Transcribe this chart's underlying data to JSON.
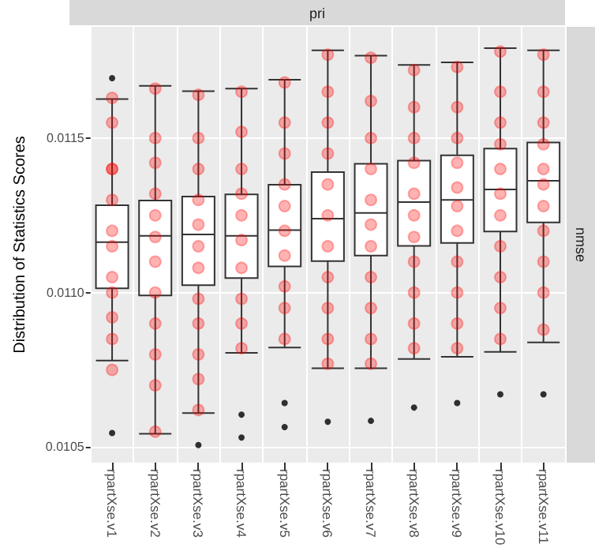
{
  "chart_data": {
    "type": "box",
    "ylabel": "Distribution of Statistics Scores",
    "annotations": [
      "pri",
      "nmse"
    ],
    "categories": [
      "rpartXse.v1",
      "rpartXse.v2",
      "rpartXse.v3",
      "rpartXse.v4",
      "rpartXse.v5",
      "rpartXse.v6",
      "rpartXse.v7",
      "rpartXse.v8",
      "rpartXse.v9",
      "rpartXse.v10",
      "rpartXse.v11"
    ],
    "ylim": [
      0.01045,
      0.01186
    ],
    "yticks": [
      0.0105,
      {
        "value": 0.011,
        "label": "0.0110"
      },
      0.0115
    ],
    "grid": true,
    "boxes": [
      {
        "low": 0.01078,
        "q1": 0.011014,
        "median": 0.011163,
        "q3": 0.011283,
        "high": 0.011626,
        "outliers": [
          0.011694,
          0.010546
        ]
      },
      {
        "low": 0.010543,
        "q1": 0.010991,
        "median": 0.011184,
        "q3": 0.011298,
        "high": 0.011669
      },
      {
        "low": 0.01061,
        "q1": 0.011024,
        "median": 0.011188,
        "q3": 0.011311,
        "high": 0.011652,
        "outliers": [
          0.010507
        ]
      },
      {
        "low": 0.010805,
        "q1": 0.011047,
        "median": 0.011184,
        "q3": 0.011318,
        "high": 0.01166,
        "outliers": [
          0.010605,
          0.010531
        ]
      },
      {
        "low": 0.010822,
        "q1": 0.011085,
        "median": 0.011202,
        "q3": 0.011349,
        "high": 0.011689,
        "outliers": [
          0.010643,
          0.010565
        ]
      },
      {
        "low": 0.010755,
        "q1": 0.011102,
        "median": 0.011239,
        "q3": 0.01139,
        "high": 0.011784,
        "outliers": [
          0.010582
        ]
      },
      {
        "low": 0.010755,
        "q1": 0.01112,
        "median": 0.011258,
        "q3": 0.011417,
        "high": 0.011767,
        "outliers": [
          0.010585
        ]
      },
      {
        "low": 0.010785,
        "q1": 0.011151,
        "median": 0.011293,
        "q3": 0.011427,
        "high": 0.011737,
        "outliers": [
          0.010628
        ]
      },
      {
        "low": 0.010792,
        "q1": 0.011161,
        "median": 0.0113,
        "q3": 0.011444,
        "high": 0.011745,
        "outliers": [
          0.010643
        ]
      },
      {
        "low": 0.010808,
        "q1": 0.011198,
        "median": 0.011334,
        "q3": 0.011466,
        "high": 0.011791,
        "outliers": [
          0.010671
        ]
      },
      {
        "low": 0.010839,
        "q1": 0.011227,
        "median": 0.011362,
        "q3": 0.011486,
        "high": 0.011784,
        "outliers": [
          0.010671
        ]
      }
    ],
    "series": [
      {
        "type": "scatter",
        "color": "#ff0000",
        "marker": "circle",
        "x": [
          "rpartXse.v1",
          "rpartXse.v1",
          "rpartXse.v1",
          "rpartXse.v1",
          "rpartXse.v1",
          "rpartXse.v1",
          "rpartXse.v1",
          "rpartXse.v1",
          "rpartXse.v1",
          "rpartXse.v1",
          "rpartXse.v1",
          "rpartXse.v1",
          "rpartXse.v2",
          "rpartXse.v2",
          "rpartXse.v2",
          "rpartXse.v2",
          "rpartXse.v2",
          "rpartXse.v2",
          "rpartXse.v2",
          "rpartXse.v2",
          "rpartXse.v2",
          "rpartXse.v2",
          "rpartXse.v2",
          "rpartXse.v2",
          "rpartXse.v3",
          "rpartXse.v3",
          "rpartXse.v3",
          "rpartXse.v3",
          "rpartXse.v3",
          "rpartXse.v3",
          "rpartXse.v3",
          "rpartXse.v3",
          "rpartXse.v3",
          "rpartXse.v3",
          "rpartXse.v3",
          "rpartXse.v3",
          "rpartXse.v4",
          "rpartXse.v4",
          "rpartXse.v4",
          "rpartXse.v4",
          "rpartXse.v4",
          "rpartXse.v4",
          "rpartXse.v4",
          "rpartXse.v4",
          "rpartXse.v4",
          "rpartXse.v4",
          "rpartXse.v5",
          "rpartXse.v5",
          "rpartXse.v5",
          "rpartXse.v5",
          "rpartXse.v5",
          "rpartXse.v5",
          "rpartXse.v5",
          "rpartXse.v5",
          "rpartXse.v5",
          "rpartXse.v5",
          "rpartXse.v6",
          "rpartXse.v6",
          "rpartXse.v6",
          "rpartXse.v6",
          "rpartXse.v6",
          "rpartXse.v6",
          "rpartXse.v6",
          "rpartXse.v6",
          "rpartXse.v6",
          "rpartXse.v6",
          "rpartXse.v6",
          "rpartXse.v7",
          "rpartXse.v7",
          "rpartXse.v7",
          "rpartXse.v7",
          "rpartXse.v7",
          "rpartXse.v7",
          "rpartXse.v7",
          "rpartXse.v7",
          "rpartXse.v7",
          "rpartXse.v7",
          "rpartXse.v7",
          "rpartXse.v8",
          "rpartXse.v8",
          "rpartXse.v8",
          "rpartXse.v8",
          "rpartXse.v8",
          "rpartXse.v8",
          "rpartXse.v8",
          "rpartXse.v8",
          "rpartXse.v8",
          "rpartXse.v8",
          "rpartXse.v8",
          "rpartXse.v9",
          "rpartXse.v9",
          "rpartXse.v9",
          "rpartXse.v9",
          "rpartXse.v9",
          "rpartXse.v9",
          "rpartXse.v9",
          "rpartXse.v9",
          "rpartXse.v9",
          "rpartXse.v9",
          "rpartXse.v9",
          "rpartXse.v10",
          "rpartXse.v10",
          "rpartXse.v10",
          "rpartXse.v10",
          "rpartXse.v10",
          "rpartXse.v10",
          "rpartXse.v10",
          "rpartXse.v10",
          "rpartXse.v10",
          "rpartXse.v10",
          "rpartXse.v10",
          "rpartXse.v11",
          "rpartXse.v11",
          "rpartXse.v11",
          "rpartXse.v11",
          "rpartXse.v11",
          "rpartXse.v11",
          "rpartXse.v11",
          "rpartXse.v11",
          "rpartXse.v11",
          "rpartXse.v11",
          "rpartXse.v11"
        ],
        "values": [
          0.01163,
          0.01155,
          0.0114,
          0.0114,
          0.0113,
          0.0112,
          0.01115,
          0.01105,
          0.011,
          0.01092,
          0.01085,
          0.01075,
          0.01166,
          0.0115,
          0.01142,
          0.01132,
          0.01125,
          0.01118,
          0.0111,
          0.011,
          0.0109,
          0.0108,
          0.0107,
          0.01055,
          0.01164,
          0.0115,
          0.0114,
          0.0113,
          0.01122,
          0.01115,
          0.01108,
          0.01098,
          0.0109,
          0.0108,
          0.01072,
          0.01062,
          0.01165,
          0.01152,
          0.0114,
          0.01132,
          0.01125,
          0.01117,
          0.01108,
          0.01098,
          0.0109,
          0.01082,
          0.01168,
          0.01155,
          0.01145,
          0.01135,
          0.01128,
          0.0112,
          0.01112,
          0.01102,
          0.01095,
          0.01085,
          0.01177,
          0.01165,
          0.01155,
          0.01145,
          0.01135,
          0.01125,
          0.01115,
          0.01105,
          0.01095,
          0.01085,
          0.01077,
          0.01176,
          0.01162,
          0.0115,
          0.0114,
          0.0113,
          0.01122,
          0.01115,
          0.01105,
          0.01095,
          0.01085,
          0.01077,
          0.01172,
          0.0116,
          0.0115,
          0.01142,
          0.01132,
          0.01125,
          0.01118,
          0.0111,
          0.011,
          0.0109,
          0.01082,
          0.01173,
          0.0116,
          0.0115,
          0.01142,
          0.01134,
          0.01128,
          0.0112,
          0.0111,
          0.011,
          0.0109,
          0.01082,
          0.01178,
          0.01165,
          0.01155,
          0.01148,
          0.0114,
          0.01132,
          0.01125,
          0.01115,
          0.01105,
          0.01095,
          0.01085,
          0.01177,
          0.01165,
          0.01155,
          0.01148,
          0.0114,
          0.01135,
          0.01128,
          0.0112,
          0.0111,
          0.011,
          0.01088
        ]
      }
    ]
  }
}
